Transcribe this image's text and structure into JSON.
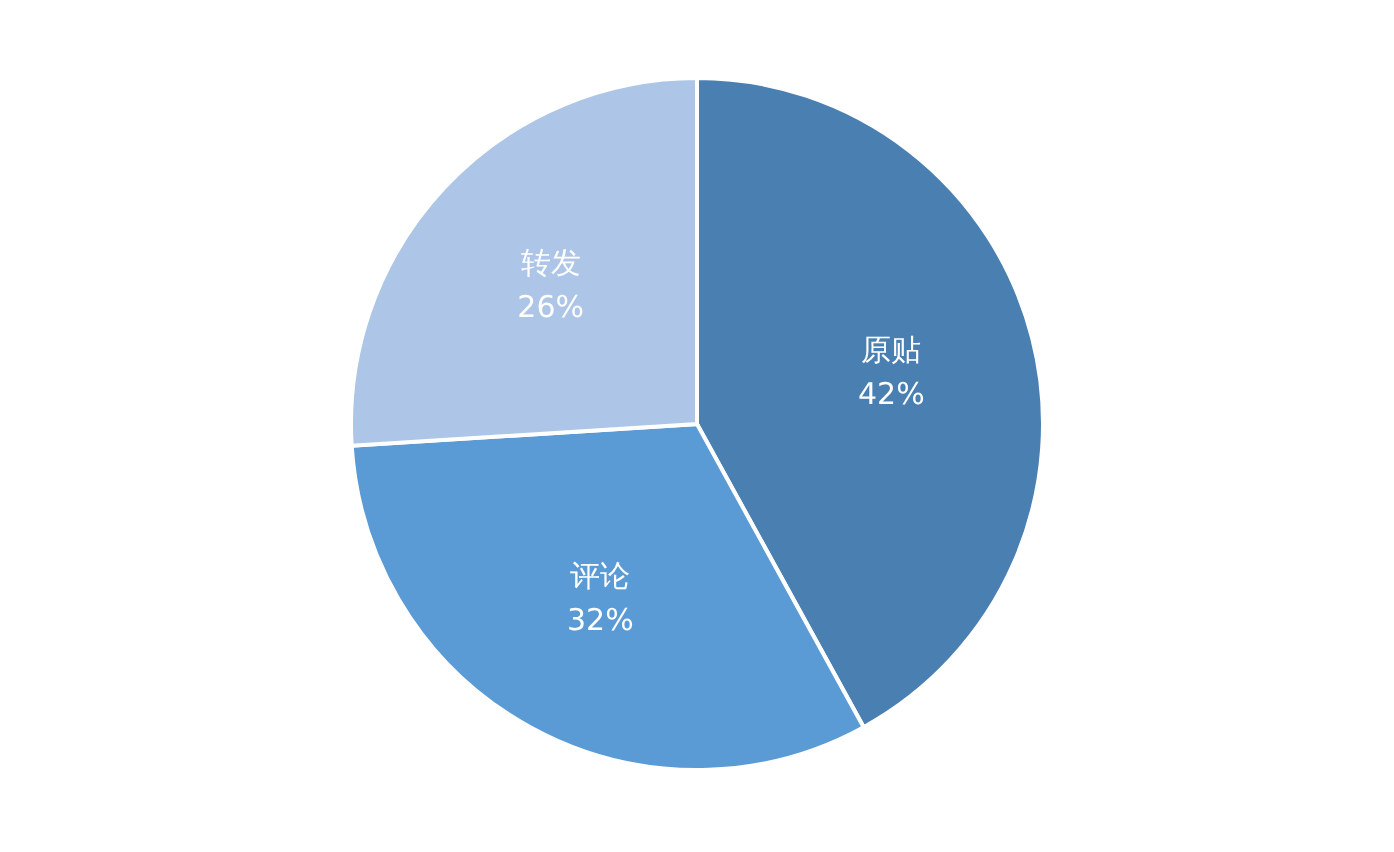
{
  "chart_data": {
    "type": "pie",
    "categories": [
      "原贴",
      "评论",
      "转发"
    ],
    "values": [
      42,
      32,
      26
    ],
    "value_labels": [
      "42%",
      "32%",
      "26%"
    ],
    "colors": [
      "#4a7fb1",
      "#5b9bd5",
      "#adc5e6"
    ],
    "legend": false
  }
}
